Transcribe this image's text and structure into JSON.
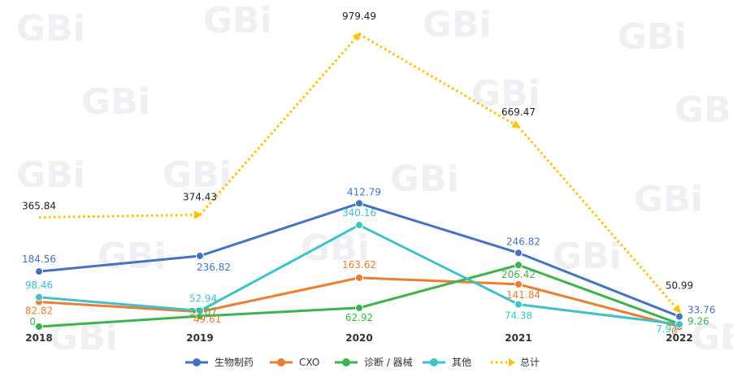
{
  "watermark": "GBi",
  "chart_data": {
    "type": "line",
    "categories": [
      "2018",
      "2019",
      "2020",
      "2021",
      "2022"
    ],
    "series": [
      {
        "name": "生物制药",
        "color": "#4472c4",
        "values": [
          184.56,
          236.82,
          412.79,
          246.82,
          33.76
        ],
        "labels": [
          "184.56",
          "236.82",
          "412.79",
          "246.82",
          "33.76"
        ]
      },
      {
        "name": "CXO",
        "color": "#ed7d31",
        "values": [
          82.82,
          49.61,
          163.62,
          141.84,
          0
        ],
        "labels": [
          "82.82",
          "49.61",
          "163.62",
          "141.84",
          "0"
        ]
      },
      {
        "name": "诊断 / 器械",
        "color": "#3cb44b",
        "values": [
          0,
          35.07,
          62.92,
          206.42,
          9.26
        ],
        "labels": [
          "0",
          "35.07",
          "62.92",
          "206.42",
          "9.26"
        ]
      },
      {
        "name": "其他",
        "color": "#3fc1c9",
        "values": [
          98.46,
          52.94,
          340.16,
          74.38,
          7.97
        ],
        "labels": [
          "98.46",
          "52.94",
          "340.16",
          "74.38",
          "7.97"
        ]
      },
      {
        "name": "总计",
        "color": "#ffc000",
        "dashed": true,
        "values": [
          365.84,
          374.43,
          979.49,
          669.47,
          50.99
        ],
        "labels": [
          "365.84",
          "374.43",
          "979.49",
          "669.47",
          "50.99"
        ]
      }
    ],
    "legend_position": "bottom",
    "grid": false
  }
}
